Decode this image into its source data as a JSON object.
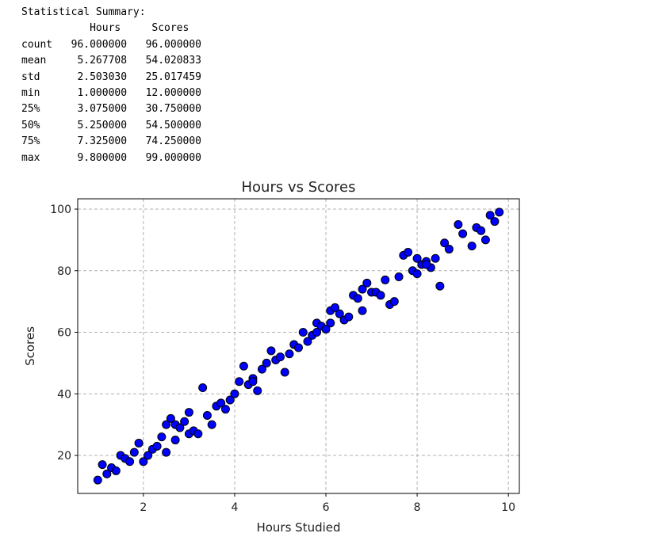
{
  "output": {
    "heading": "Statistical Summary:",
    "stats_columns": [
      "Hours",
      "Scores"
    ],
    "stats_rows": [
      {
        "label": "count",
        "hours": "96.000000",
        "scores": "96.000000"
      },
      {
        "label": "mean",
        "hours": "5.267708",
        "scores": "54.020833"
      },
      {
        "label": "std",
        "hours": "2.503030",
        "scores": "25.017459"
      },
      {
        "label": "min",
        "hours": "1.000000",
        "scores": "12.000000"
      },
      {
        "label": "25%",
        "hours": "3.075000",
        "scores": "30.750000"
      },
      {
        "label": "50%",
        "hours": "5.250000",
        "scores": "54.500000"
      },
      {
        "label": "75%",
        "hours": "7.325000",
        "scores": "74.250000"
      },
      {
        "label": "max",
        "hours": "9.800000",
        "scores": "99.000000"
      }
    ]
  },
  "chart_data": {
    "type": "scatter",
    "title": "Hours vs Scores",
    "xlabel": "Hours Studied",
    "ylabel": "Scores",
    "xlim": [
      0.56,
      10.24
    ],
    "ylim": [
      7.65,
      103.35
    ],
    "xticks": [
      2,
      4,
      6,
      8,
      10
    ],
    "yticks": [
      20,
      40,
      60,
      80,
      100
    ],
    "grid": true,
    "marker_color": "#0000ff",
    "marker_edge_color": "#000000",
    "points": [
      [
        1.0,
        12
      ],
      [
        1.1,
        17
      ],
      [
        1.2,
        14
      ],
      [
        1.3,
        16
      ],
      [
        1.4,
        15
      ],
      [
        1.5,
        20
      ],
      [
        1.6,
        19
      ],
      [
        1.7,
        18
      ],
      [
        1.8,
        21
      ],
      [
        1.9,
        24
      ],
      [
        2.0,
        18
      ],
      [
        2.1,
        20
      ],
      [
        2.2,
        22
      ],
      [
        2.3,
        23
      ],
      [
        2.4,
        26
      ],
      [
        2.5,
        21
      ],
      [
        2.5,
        30
      ],
      [
        2.6,
        32
      ],
      [
        2.7,
        30
      ],
      [
        2.7,
        25
      ],
      [
        2.8,
        29
      ],
      [
        2.9,
        31
      ],
      [
        3.0,
        34
      ],
      [
        3.0,
        27
      ],
      [
        3.1,
        28
      ],
      [
        3.2,
        27
      ],
      [
        3.3,
        42
      ],
      [
        3.4,
        33
      ],
      [
        3.5,
        30
      ],
      [
        3.6,
        36
      ],
      [
        3.7,
        37
      ],
      [
        3.8,
        35
      ],
      [
        3.9,
        38
      ],
      [
        4.0,
        40
      ],
      [
        4.1,
        44
      ],
      [
        4.2,
        49
      ],
      [
        4.3,
        43
      ],
      [
        4.4,
        45
      ],
      [
        4.4,
        44
      ],
      [
        4.5,
        41
      ],
      [
        4.6,
        48
      ],
      [
        4.7,
        50
      ],
      [
        4.8,
        54
      ],
      [
        4.9,
        51
      ],
      [
        5.0,
        52
      ],
      [
        5.1,
        47
      ],
      [
        5.2,
        53
      ],
      [
        5.3,
        56
      ],
      [
        5.4,
        55
      ],
      [
        5.5,
        60
      ],
      [
        5.6,
        57
      ],
      [
        5.7,
        59
      ],
      [
        5.8,
        60
      ],
      [
        5.8,
        63
      ],
      [
        5.9,
        62
      ],
      [
        6.0,
        61
      ],
      [
        6.1,
        63
      ],
      [
        6.1,
        67
      ],
      [
        6.2,
        68
      ],
      [
        6.3,
        66
      ],
      [
        6.4,
        64
      ],
      [
        6.5,
        65
      ],
      [
        6.6,
        72
      ],
      [
        6.7,
        71
      ],
      [
        6.8,
        74
      ],
      [
        6.8,
        67
      ],
      [
        6.9,
        76
      ],
      [
        7.0,
        73
      ],
      [
        7.1,
        73
      ],
      [
        7.2,
        72
      ],
      [
        7.3,
        77
      ],
      [
        7.4,
        69
      ],
      [
        7.5,
        70
      ],
      [
        7.6,
        78
      ],
      [
        7.7,
        85
      ],
      [
        7.8,
        86
      ],
      [
        7.9,
        80
      ],
      [
        8.0,
        84
      ],
      [
        8.0,
        79
      ],
      [
        8.1,
        82
      ],
      [
        8.2,
        83
      ],
      [
        8.3,
        81
      ],
      [
        8.4,
        84
      ],
      [
        8.5,
        75
      ],
      [
        8.6,
        89
      ],
      [
        8.7,
        87
      ],
      [
        8.9,
        95
      ],
      [
        9.0,
        92
      ],
      [
        9.2,
        88
      ],
      [
        9.3,
        94
      ],
      [
        9.4,
        93
      ],
      [
        9.5,
        90
      ],
      [
        9.6,
        98
      ],
      [
        9.7,
        96
      ],
      [
        9.8,
        99
      ],
      [
        8.2,
        82
      ]
    ]
  }
}
